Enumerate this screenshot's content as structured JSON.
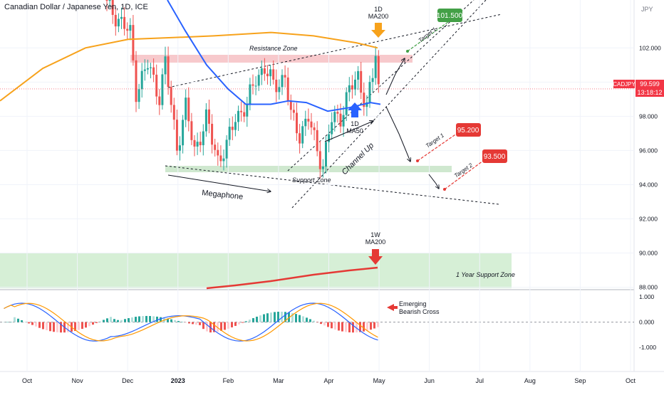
{
  "header": {
    "title": "Canadian Dollar / Japanese Yen, 1D, ICE",
    "currency": "JPY",
    "symbol_badge": "CADJPY",
    "price_badge": "99.599",
    "countdown_badge": "13:18:12"
  },
  "colors": {
    "up_candle": "#26a69a",
    "down_candle": "#ef5350",
    "ma200_daily": "#f7a21b",
    "ma50_daily": "#2962ff",
    "ma200_weekly": "#e53935",
    "resistance_zone": "#f7c9cc",
    "support_zone": "#cfe8cf",
    "macd_line": "#2962ff",
    "signal_line": "#ff9800",
    "target_green": "#43a047",
    "target_red": "#e53935"
  },
  "annotations": {
    "resistance_zone": "Resistance Zone",
    "support_zone": "Support Zone",
    "megaphone": "Megaphone",
    "channel_up": "Channel Up",
    "one_year_support": "1 Year Support Zone",
    "ma200_1d_a": "1D",
    "ma200_1d_b": "MA200",
    "ma50_1d_a": "1D",
    "ma50_1d_b": "MA50",
    "ma200_1w_a": "1W",
    "ma200_1w_b": "MA200",
    "target_1_up": "Target 1",
    "target_1_down": "Target 1",
    "target_2_down": "Target 2",
    "target_box_up": "101.500",
    "target_box_1": "95.200",
    "target_box_2": "93.500",
    "emerging_a": "Emerging",
    "emerging_b": "Bearish Cross"
  },
  "chart_data": {
    "type": "candlestick",
    "price_axis": {
      "ticks": [
        "102.000",
        "100.000",
        "98.000",
        "96.000",
        "94.000",
        "92.000",
        "90.000",
        "88.000"
      ],
      "range": [
        87.9,
        104.8
      ]
    },
    "oscillator_axis": {
      "ticks": [
        "1.000",
        "0.000",
        "-1.000"
      ],
      "range": [
        -1.9,
        1.2
      ]
    },
    "time_axis": {
      "labels": [
        "Oct",
        "Nov",
        "Dec",
        "2023",
        "Feb",
        "Mar",
        "Apr",
        "May",
        "Jun",
        "Jul",
        "Aug",
        "Sep",
        "Oct"
      ]
    },
    "last_price": 99.599,
    "target_levels": [
      101.5,
      95.2,
      93.5
    ],
    "price_path": [
      [
        0,
        104.5
      ],
      [
        5,
        103.5
      ],
      [
        8,
        102.8
      ],
      [
        10,
        99.5
      ],
      [
        14,
        101.0
      ],
      [
        18,
        99.2
      ],
      [
        20,
        101.1
      ],
      [
        24,
        96.2
      ],
      [
        27,
        98.5
      ],
      [
        30,
        96.0
      ],
      [
        34,
        97.8
      ],
      [
        38,
        95.5
      ],
      [
        41,
        96.2
      ],
      [
        44,
        98.0
      ],
      [
        48,
        98.6
      ],
      [
        51,
        100.3
      ],
      [
        54,
        100.8
      ],
      [
        57,
        99.8
      ],
      [
        61,
        100.3
      ],
      [
        63,
        98.0
      ],
      [
        66,
        97.0
      ],
      [
        69,
        97.9
      ],
      [
        72,
        96.0
      ],
      [
        74,
        95.2
      ],
      [
        77,
        97.8
      ],
      [
        80,
        98.0
      ],
      [
        83,
        99.5
      ],
      [
        86,
        100.3
      ],
      [
        89,
        98.6
      ],
      [
        91,
        100.3
      ],
      [
        92,
        101.7
      ],
      [
        93,
        99.6
      ]
    ]
  }
}
